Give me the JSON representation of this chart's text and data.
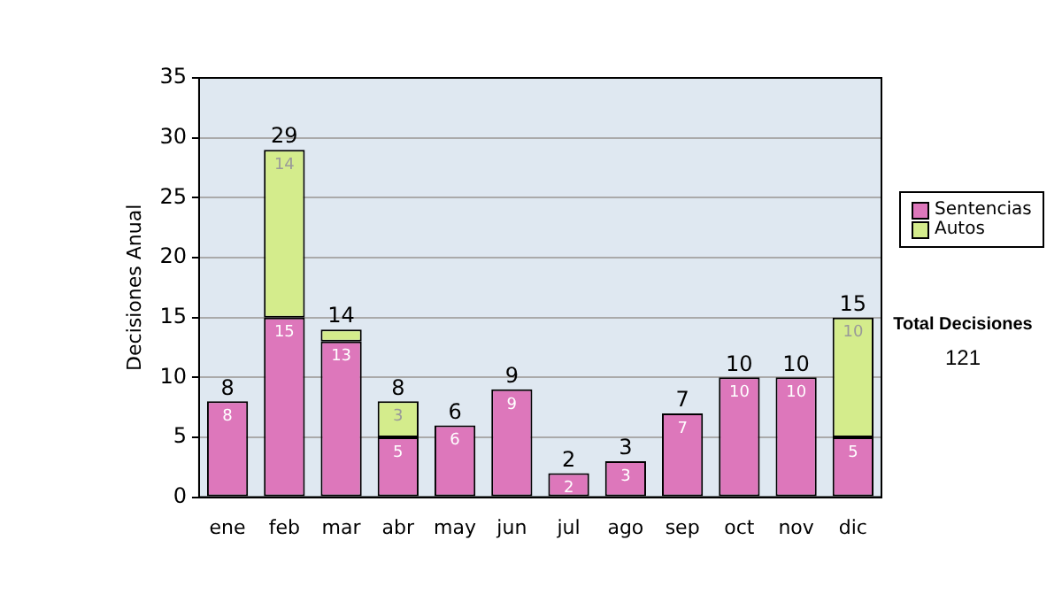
{
  "chart_data": {
    "type": "bar",
    "ylabel": "Decisiones Anual",
    "categories": [
      "ene",
      "feb",
      "mar",
      "abr",
      "may",
      "jun",
      "jul",
      "ago",
      "sep",
      "oct",
      "nov",
      "dic"
    ],
    "series": [
      {
        "name": "Sentencias",
        "color": "#dd77bb",
        "values": [
          8,
          15,
          13,
          5,
          6,
          9,
          2,
          3,
          7,
          10,
          10,
          5
        ],
        "value_labels": [
          "8",
          "15",
          "13",
          "5",
          "6",
          "9",
          "2",
          "3",
          "7",
          "10",
          "10",
          "5"
        ]
      },
      {
        "name": "Autos",
        "color": "#d4ec8c",
        "values": [
          0,
          14,
          1,
          3,
          0,
          0,
          0,
          0,
          0,
          0,
          0,
          10
        ],
        "value_labels": [
          null,
          "14",
          null,
          "3",
          null,
          null,
          null,
          null,
          null,
          null,
          null,
          "10"
        ]
      }
    ],
    "stacked": true,
    "totals": [
      "8",
      "29",
      "14",
      "8",
      "6",
      "9",
      "2",
      "3",
      "7",
      "10",
      "10",
      "15"
    ],
    "ylim": [
      0,
      35
    ],
    "yticks": [
      0,
      5,
      10,
      15,
      20,
      25,
      30,
      35
    ],
    "grid": "y",
    "legend": "right",
    "annotations": [
      "Total Decisiones",
      "121"
    ]
  }
}
